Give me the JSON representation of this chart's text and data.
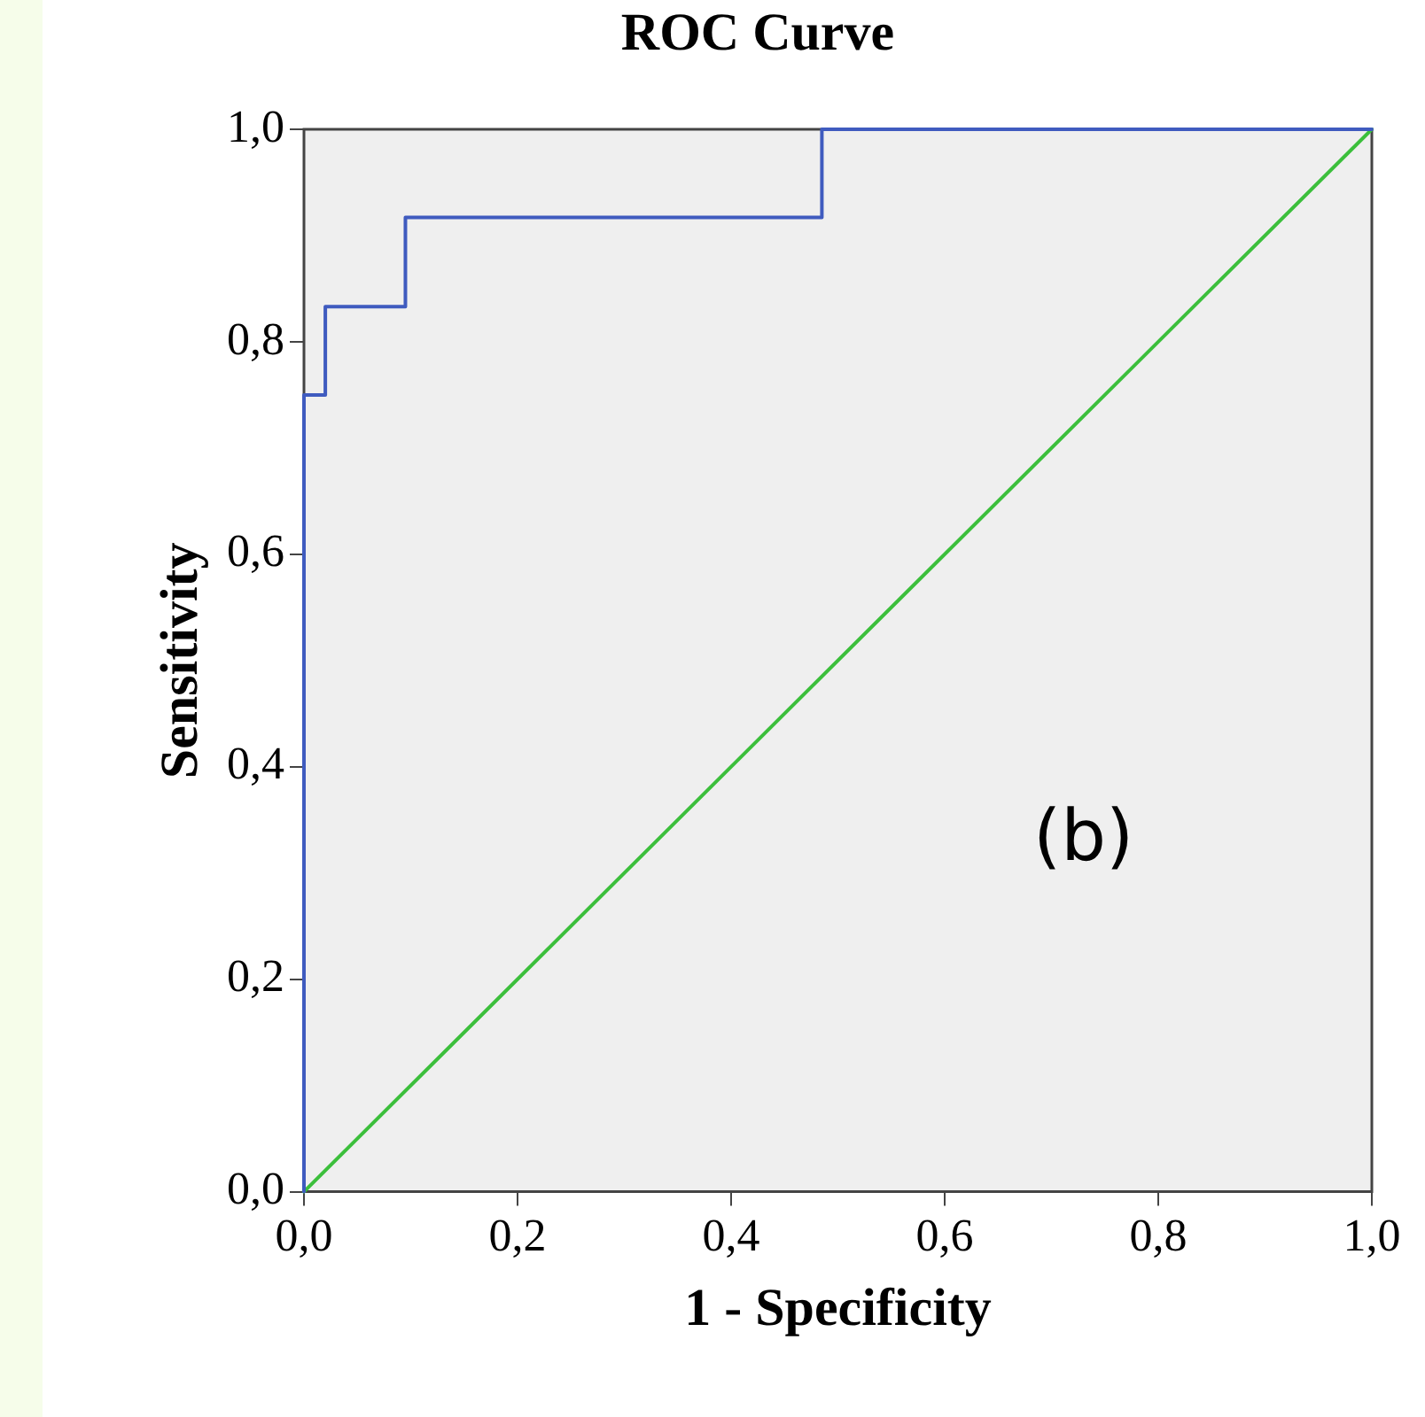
{
  "chart_data": {
    "type": "line",
    "title": "ROC Curve",
    "xlabel": "1 - Specificity",
    "ylabel": "Sensitivity",
    "series": [
      {
        "type": "step",
        "color": "#3f5bbf",
        "x": [
          0,
          0,
          0.02,
          0.095,
          0.485,
          1
        ],
        "values": [
          0,
          0.75,
          0.833,
          0.917,
          1,
          1
        ]
      },
      {
        "color": "#3cbf3c",
        "x": [
          0,
          1
        ],
        "values": [
          0,
          1
        ]
      }
    ],
    "xlim": [
      0,
      1
    ],
    "ylim": [
      0,
      1
    ],
    "xticks": [
      {
        "value": 0,
        "label": "0,0"
      },
      {
        "value": 0.2,
        "label": "0,2"
      },
      {
        "value": 0.4,
        "label": "0,4"
      },
      {
        "value": 0.6,
        "label": "0,6"
      },
      {
        "value": 0.8,
        "label": "0,8"
      },
      {
        "value": 1,
        "label": "1,0"
      }
    ],
    "yticks": [
      {
        "value": 0,
        "label": "0,0"
      },
      {
        "value": 0.2,
        "label": "0,2"
      },
      {
        "value": 0.4,
        "label": "0,4"
      },
      {
        "value": 0.6,
        "label": "0,6"
      },
      {
        "value": 0.8,
        "label": "0,8"
      },
      {
        "value": 1,
        "label": "1,0"
      }
    ],
    "annotations": [
      "(b)"
    ],
    "grid": false,
    "legend": false,
    "marker": "none"
  }
}
